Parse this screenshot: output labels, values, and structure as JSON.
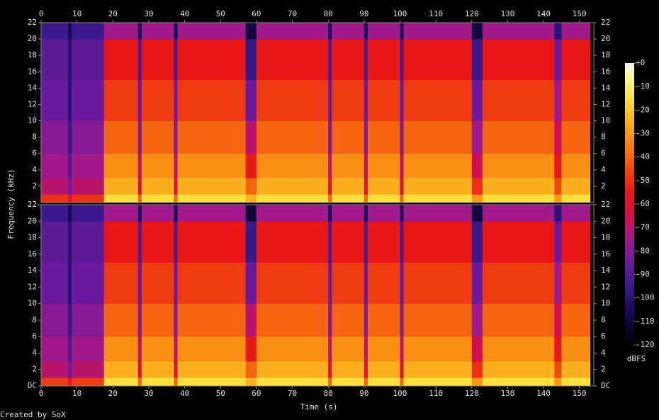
{
  "chart_data": {
    "type": "spectrogram",
    "xlabel": "Time (s)",
    "ylabel": "Frequency (kHz)",
    "footer": "Created by SoX",
    "xlim": [
      0,
      154
    ],
    "xticks": [
      0,
      10,
      20,
      30,
      40,
      50,
      60,
      70,
      80,
      90,
      100,
      110,
      120,
      130,
      140,
      150
    ],
    "ylim": [
      0,
      22
    ],
    "xbins": [
      0,
      7.5,
      8.5,
      17.5,
      27,
      28,
      37,
      38,
      57,
      60,
      80,
      81,
      90,
      91,
      100,
      101,
      120,
      123,
      143,
      145,
      153
    ],
    "ybins": [
      0,
      1,
      3,
      6,
      10,
      15,
      20,
      22
    ],
    "channels": [
      {
        "yticks": [
          2,
          4,
          6,
          8,
          10,
          12,
          14,
          16,
          18,
          20,
          22
        ],
        "values": [
          [
            -50,
            -70,
            -75,
            -80,
            -85,
            -88,
            -95
          ],
          [
            -60,
            -85,
            -90,
            -95,
            -100,
            -100,
            -105
          ],
          [
            -50,
            -70,
            -75,
            -80,
            -85,
            -88,
            -95
          ],
          [
            -15,
            -25,
            -32,
            -40,
            -48,
            -55,
            -75
          ],
          [
            -40,
            -60,
            -70,
            -80,
            -85,
            -90,
            -105
          ],
          [
            -15,
            -25,
            -32,
            -40,
            -48,
            -55,
            -75
          ],
          [
            -40,
            -60,
            -70,
            -80,
            -85,
            -90,
            -105
          ],
          [
            -15,
            -25,
            -32,
            -40,
            -48,
            -55,
            -75
          ],
          [
            -25,
            -40,
            -55,
            -70,
            -85,
            -95,
            -110
          ],
          [
            -15,
            -25,
            -32,
            -40,
            -48,
            -55,
            -75
          ],
          [
            -40,
            -60,
            -70,
            -80,
            -85,
            -90,
            -105
          ],
          [
            -15,
            -25,
            -32,
            -40,
            -48,
            -55,
            -75
          ],
          [
            -40,
            -60,
            -70,
            -80,
            -85,
            -90,
            -105
          ],
          [
            -15,
            -25,
            -32,
            -40,
            -48,
            -55,
            -75
          ],
          [
            -40,
            -60,
            -70,
            -80,
            -85,
            -90,
            -105
          ],
          [
            -15,
            -25,
            -32,
            -40,
            -48,
            -55,
            -75
          ],
          [
            -30,
            -50,
            -65,
            -75,
            -85,
            -95,
            -110
          ],
          [
            -15,
            -25,
            -32,
            -40,
            -48,
            -55,
            -75
          ],
          [
            -30,
            -45,
            -55,
            -65,
            -75,
            -85,
            -100
          ],
          [
            -15,
            -25,
            -32,
            -40,
            -48,
            -55,
            -75
          ]
        ]
      },
      {
        "yticks": [
          {
            "value": 0,
            "label": "DC"
          },
          2,
          4,
          6,
          8,
          10,
          12,
          14,
          16,
          18,
          20,
          22
        ],
        "values": [
          [
            -48,
            -70,
            -75,
            -80,
            -85,
            -88,
            -95
          ],
          [
            -60,
            -85,
            -90,
            -95,
            -100,
            -100,
            -105
          ],
          [
            -48,
            -70,
            -75,
            -80,
            -85,
            -88,
            -95
          ],
          [
            -15,
            -25,
            -32,
            -40,
            -48,
            -55,
            -75
          ],
          [
            -40,
            -60,
            -70,
            -80,
            -85,
            -90,
            -105
          ],
          [
            -15,
            -25,
            -32,
            -40,
            -48,
            -55,
            -75
          ],
          [
            -40,
            -60,
            -70,
            -80,
            -85,
            -90,
            -105
          ],
          [
            -15,
            -25,
            -32,
            -40,
            -48,
            -55,
            -75
          ],
          [
            -25,
            -40,
            -55,
            -70,
            -85,
            -95,
            -110
          ],
          [
            -15,
            -25,
            -32,
            -40,
            -48,
            -55,
            -75
          ],
          [
            -40,
            -60,
            -70,
            -80,
            -85,
            -90,
            -105
          ],
          [
            -15,
            -25,
            -32,
            -40,
            -48,
            -55,
            -75
          ],
          [
            -40,
            -60,
            -70,
            -80,
            -85,
            -90,
            -105
          ],
          [
            -15,
            -25,
            -32,
            -40,
            -48,
            -55,
            -75
          ],
          [
            -40,
            -60,
            -70,
            -80,
            -85,
            -90,
            -105
          ],
          [
            -15,
            -25,
            -32,
            -40,
            -48,
            -55,
            -75
          ],
          [
            -30,
            -50,
            -65,
            -75,
            -85,
            -95,
            -110
          ],
          [
            -15,
            -25,
            -32,
            -40,
            -48,
            -55,
            -75
          ],
          [
            -30,
            -45,
            -55,
            -65,
            -75,
            -85,
            -100
          ],
          [
            -15,
            -25,
            -32,
            -40,
            -48,
            -55,
            -75
          ]
        ]
      }
    ],
    "colorbar": {
      "label": "dBFS",
      "lim": [
        -120,
        0
      ],
      "ticks": [
        {
          "value": 0,
          "label": "+0"
        },
        -10,
        -20,
        -30,
        -40,
        -50,
        -60,
        -70,
        -80,
        -90,
        -100,
        -110,
        -120
      ]
    }
  }
}
